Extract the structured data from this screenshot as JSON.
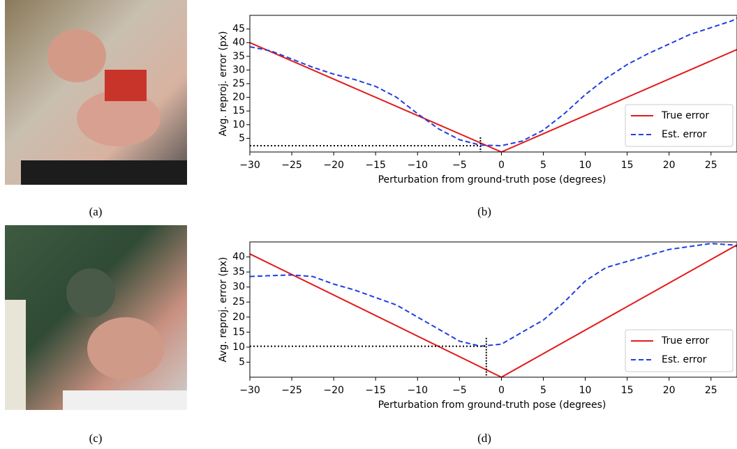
{
  "images": [
    {
      "caption": "(a)"
    },
    {
      "caption": "(c)"
    }
  ],
  "chart_data": [
    {
      "type": "line",
      "caption": "(b)",
      "xlabel": "Perturbation from ground-truth pose (degrees)",
      "ylabel": "Avg. reproj. error (px)",
      "xlim": [
        -30,
        28.1
      ],
      "ylim": [
        0,
        50
      ],
      "xticks": [
        {
          "value": -30,
          "label": "−30"
        },
        {
          "value": -25,
          "label": "−25"
        },
        {
          "value": -20,
          "label": "−20"
        },
        {
          "value": -15,
          "label": "−15"
        },
        {
          "value": -10,
          "label": "−10"
        },
        {
          "value": -5,
          "label": "−5"
        },
        0,
        5,
        10,
        15,
        20,
        25
      ],
      "yticks": [
        5,
        10,
        15,
        20,
        25,
        30,
        35,
        40,
        45
      ],
      "legend": "lower right",
      "series": [
        {
          "name": "True error",
          "color": "#e31a1c",
          "dash": "solid",
          "x": [
            -30,
            0,
            28.1
          ],
          "values": [
            40,
            0,
            37.5
          ]
        },
        {
          "name": "Est. error",
          "color": "#1f3fe0",
          "dash": "dashed",
          "x": [
            -30,
            -27.5,
            -25,
            -22.5,
            -20,
            -17.5,
            -15,
            -12.5,
            -10,
            -7.5,
            -5,
            -2.5,
            0,
            2.5,
            5,
            7.5,
            10,
            12.5,
            15,
            17.5,
            20,
            22.5,
            25,
            27.5,
            28.1
          ],
          "values": [
            38.5,
            37,
            34,
            31,
            28.5,
            26.5,
            24,
            20,
            14,
            8.5,
            4.5,
            2.5,
            2.3,
            4,
            8,
            14,
            21,
            27,
            32,
            36,
            39.5,
            43,
            45.5,
            48,
            49
          ]
        }
      ],
      "marker": {
        "x": -2.5,
        "y": 2.3
      }
    },
    {
      "type": "line",
      "caption": "(d)",
      "xlabel": "Perturbation from ground-truth pose (degrees)",
      "ylabel": "Avg. reproj. error (px)",
      "xlim": [
        -30,
        28.1
      ],
      "ylim": [
        0,
        45
      ],
      "xticks": [
        {
          "value": -30,
          "label": "−30"
        },
        {
          "value": -25,
          "label": "−25"
        },
        {
          "value": -20,
          "label": "−20"
        },
        {
          "value": -15,
          "label": "−15"
        },
        {
          "value": -10,
          "label": "−10"
        },
        {
          "value": -5,
          "label": "−5"
        },
        0,
        5,
        10,
        15,
        20,
        25
      ],
      "yticks": [
        5,
        10,
        15,
        20,
        25,
        30,
        35,
        40
      ],
      "legend": "lower right",
      "series": [
        {
          "name": "True error",
          "color": "#e31a1c",
          "dash": "solid",
          "x": [
            -30,
            0,
            28.1
          ],
          "values": [
            41,
            0,
            44
          ]
        },
        {
          "name": "Est. error",
          "color": "#1f3fe0",
          "dash": "dashed",
          "x": [
            -30,
            -27.5,
            -25,
            -22.5,
            -20,
            -17.5,
            -15,
            -12.5,
            -10,
            -7.5,
            -5,
            -2.5,
            0,
            2.5,
            5,
            7.5,
            10,
            12.5,
            15,
            17.5,
            20,
            22.5,
            25,
            27.5,
            28.1
          ],
          "values": [
            33.5,
            33.8,
            34,
            33.5,
            31,
            29,
            26.5,
            24,
            20,
            16,
            12,
            10.3,
            11,
            15,
            19,
            25,
            32,
            36.5,
            38.5,
            40.5,
            42.5,
            43.5,
            44.5,
            44,
            43.5
          ]
        }
      ],
      "marker": {
        "x": -1.8,
        "y": 10.3
      }
    }
  ]
}
